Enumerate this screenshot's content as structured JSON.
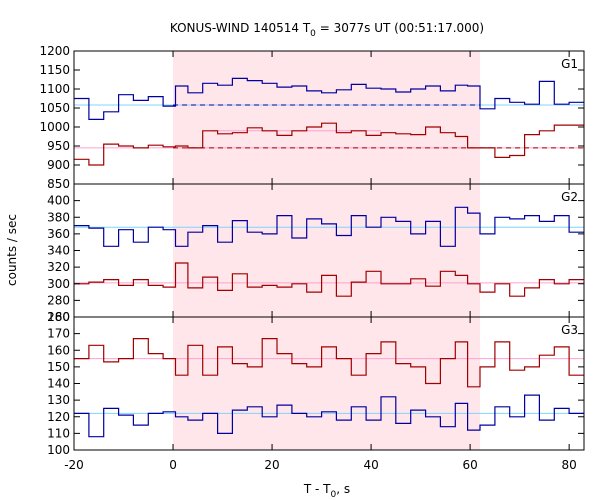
{
  "chart_data": {
    "type": "line",
    "title": {
      "main": "KONUS-WIND 140514 T",
      "sub": "0",
      "rest": " = 3077s UT (00:51:17.000)"
    },
    "xlabel": {
      "main": "T - T",
      "sub": "0",
      "rest": ", s"
    },
    "ylabel": "counts / sec",
    "xlim": [
      -20,
      83
    ],
    "xticks": [
      -20,
      0,
      20,
      40,
      60,
      80
    ],
    "xtick_labels": [
      "-20",
      "0",
      "20",
      "40",
      "60",
      "80"
    ],
    "shaded_interval": [
      0,
      62
    ],
    "colors": {
      "blue": "#0000a0",
      "red": "#a00000",
      "blue_fit": "#7fd4ff",
      "red_fit": "#ffa0d0",
      "shade": "#ffe6ea"
    },
    "bin_edges": [
      -20,
      -17,
      -14,
      -11,
      -8,
      -5,
      -2,
      0.5,
      3,
      6,
      9,
      12,
      15,
      18,
      21,
      24,
      27,
      30,
      33,
      36,
      39,
      42,
      45,
      48,
      51,
      54,
      57,
      59.5,
      62,
      65,
      68,
      71,
      74,
      77,
      80,
      83
    ],
    "panels": [
      {
        "label": "G1",
        "ylim": [
          850,
          1200
        ],
        "yticks": [
          850,
          900,
          950,
          1000,
          1050,
          1100,
          1150,
          1200
        ],
        "series": [
          {
            "color": "blue",
            "values": [
              1075,
              1020,
              1040,
              1085,
              1070,
              1080,
              1055,
              1108,
              1090,
              1115,
              1110,
              1128,
              1122,
              1115,
              1105,
              1108,
              1095,
              1090,
              1098,
              1112,
              1102,
              1100,
              1092,
              1100,
              1108,
              1095,
              1110,
              1108,
              1048,
              1075,
              1065,
              1060,
              1120,
              1060,
              1065
            ],
            "fit": 1058,
            "fit_x": [
              -20,
              83
            ],
            "dashed": 1058,
            "dashed_x": [
              0,
              62
            ]
          },
          {
            "color": "red",
            "values": [
              915,
              900,
              955,
              950,
              945,
              952,
              948,
              950,
              945,
              990,
              982,
              985,
              998,
              990,
              978,
              990,
              1000,
              1010,
              985,
              990,
              978,
              985,
              982,
              980,
              1000,
              985,
              975,
              945,
              945,
              920,
              925,
              980,
              990,
              1005,
              1005
            ],
            "fit": 945,
            "fit_x": [
              -20,
              83
            ],
            "dashed": 945,
            "dashed_x": [
              0,
              83
            ],
            "pre_fit": 945,
            "pre_fit_x": [
              0,
              62
            ],
            "extra_fit": 990,
            "extra_fit_x": [
              8,
              42
            ]
          }
        ]
      },
      {
        "label": "G2",
        "ylim": [
          260,
          420
        ],
        "yticks": [
          260,
          280,
          300,
          320,
          340,
          360,
          380,
          400
        ],
        "series": [
          {
            "color": "blue",
            "values": [
              370,
              367,
              345,
              365,
              350,
              368,
              365,
              345,
              362,
              370,
              350,
              376,
              362,
              360,
              382,
              355,
              378,
              372,
              358,
              382,
              368,
              380,
              375,
              360,
              375,
              345,
              392,
              385,
              360,
              380,
              378,
              382,
              375,
              382,
              362
            ],
            "fit": 368,
            "fit_x": [
              -20,
              83
            ]
          },
          {
            "color": "red",
            "values": [
              300,
              302,
              305,
              298,
              305,
              298,
              296,
              325,
              295,
              308,
              292,
              312,
              296,
              298,
              296,
              300,
              290,
              310,
              285,
              302,
              315,
              300,
              300,
              306,
              297,
              315,
              310,
              300,
              290,
              300,
              285,
              295,
              305,
              300,
              305
            ],
            "fit": 301,
            "fit_x": [
              -20,
              83
            ]
          }
        ]
      },
      {
        "label": "G3",
        "ylim": [
          100,
          180
        ],
        "yticks": [
          100,
          110,
          120,
          130,
          140,
          150,
          160,
          170,
          180
        ],
        "series": [
          {
            "color": "red",
            "values": [
              155,
              163,
              153,
              155,
              167,
              158,
              155,
              145,
              163,
              145,
              162,
              152,
              150,
              167,
              158,
              152,
              150,
              162,
              155,
              145,
              158,
              165,
              152,
              150,
              140,
              155,
              165,
              138,
              150,
              165,
              148,
              150,
              157,
              162,
              145
            ],
            "fit": 155,
            "fit_x": [
              -20,
              83
            ]
          },
          {
            "color": "blue",
            "values": [
              122,
              108,
              125,
              121,
              115,
              122,
              123,
              120,
              118,
              122,
              110,
              124,
              126,
              120,
              127,
              122,
              120,
              123,
              118,
              126,
              118,
              132,
              116,
              124,
              120,
              114,
              128,
              112,
              115,
              126,
              120,
              133,
              118,
              125,
              122
            ],
            "fit": 122,
            "fit_x": [
              -20,
              83
            ]
          }
        ]
      }
    ]
  }
}
